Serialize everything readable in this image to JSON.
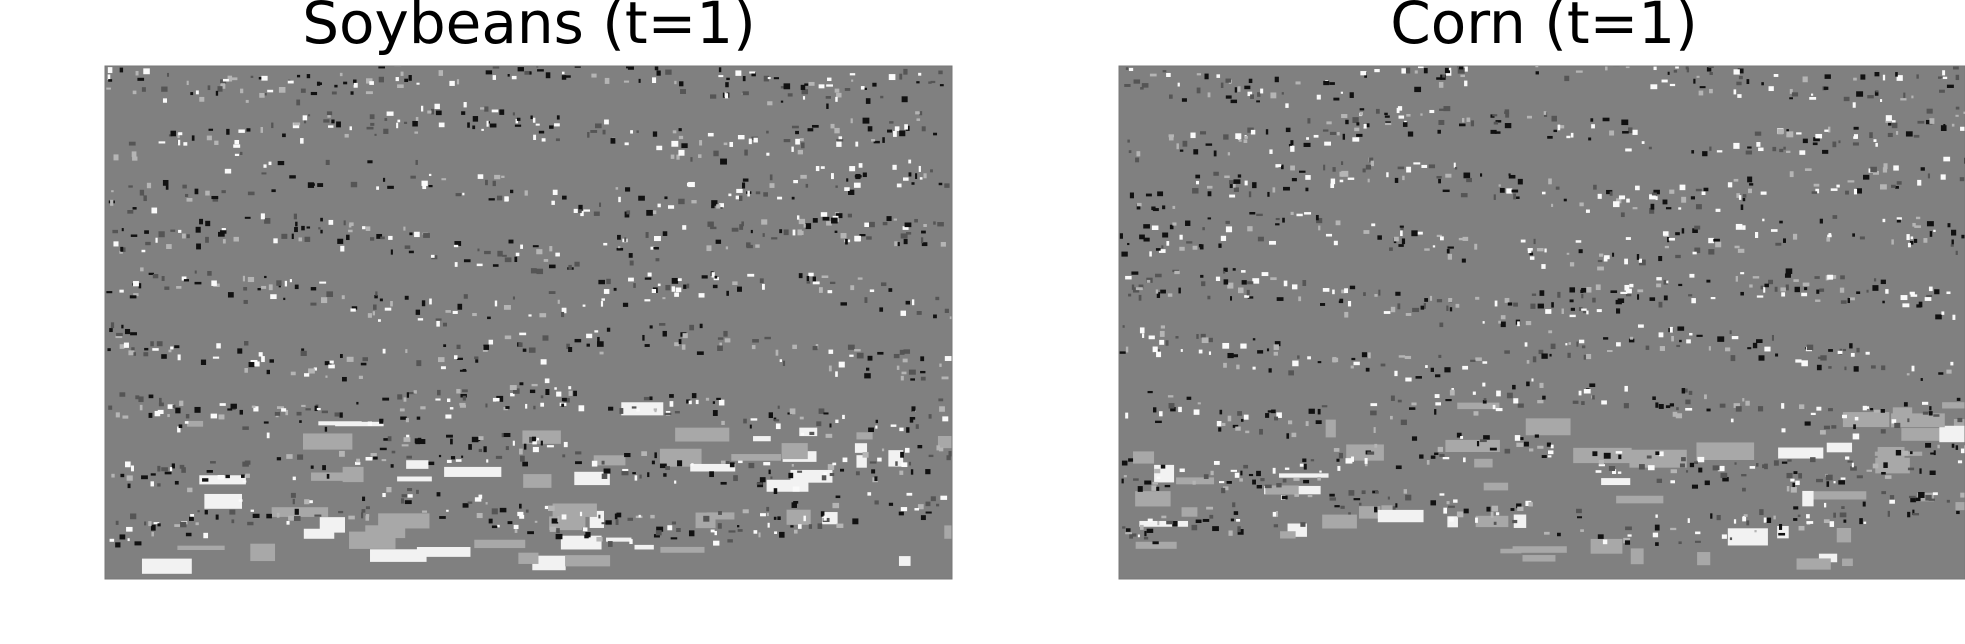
{
  "panels": [
    {
      "title": "Soybeans (t=1)"
    },
    {
      "title": "Corn (t=1)"
    }
  ]
}
